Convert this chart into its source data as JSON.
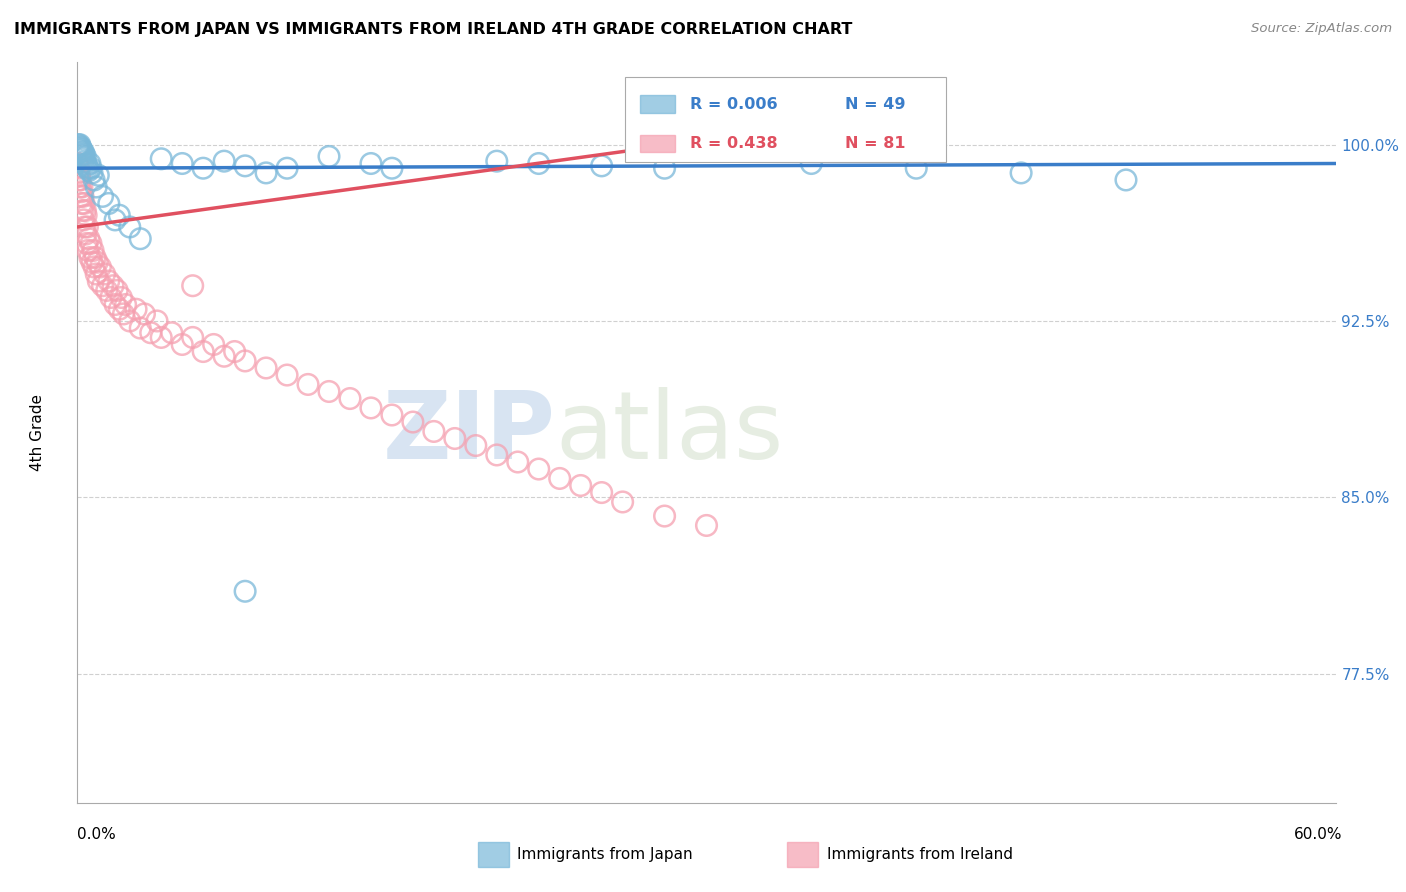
{
  "title": "IMMIGRANTS FROM JAPAN VS IMMIGRANTS FROM IRELAND 4TH GRADE CORRELATION CHART",
  "source": "Source: ZipAtlas.com",
  "ylabel": "4th Grade",
  "yticks": [
    77.5,
    85.0,
    92.5,
    100.0
  ],
  "ytick_labels": [
    "77.5%",
    "85.0%",
    "92.5%",
    "100.0%"
  ],
  "xlim": [
    0.0,
    60.0
  ],
  "ylim": [
    72.0,
    103.5
  ],
  "legend_R_japan": "R = 0.006",
  "legend_N_japan": "N = 49",
  "legend_R_ireland": "R = 0.438",
  "legend_N_ireland": "N = 81",
  "japan_color": "#7ab8d9",
  "ireland_color": "#f5a0b0",
  "japan_line_color": "#3a7dc9",
  "ireland_line_color": "#e05060",
  "watermark_zip": "ZIP",
  "watermark_atlas": "atlas",
  "background_color": "#ffffff",
  "grid_color": "#d0d0d0",
  "japan_scatter_x": [
    0.05,
    0.08,
    0.1,
    0.12,
    0.15,
    0.18,
    0.2,
    0.22,
    0.25,
    0.28,
    0.3,
    0.32,
    0.35,
    0.38,
    0.4,
    0.45,
    0.5,
    0.55,
    0.6,
    0.65,
    0.7,
    0.8,
    0.9,
    1.0,
    1.2,
    1.5,
    1.8,
    2.0,
    2.5,
    3.0,
    4.0,
    5.0,
    6.0,
    7.0,
    8.0,
    9.0,
    10.0,
    12.0,
    14.0,
    15.0,
    20.0,
    22.0,
    25.0,
    28.0,
    35.0,
    40.0,
    45.0,
    50.0,
    8.0
  ],
  "japan_scatter_y": [
    100.0,
    99.9,
    99.8,
    100.0,
    99.9,
    99.7,
    99.8,
    99.6,
    99.5,
    99.7,
    99.4,
    99.6,
    99.3,
    99.5,
    99.2,
    99.1,
    99.0,
    98.9,
    99.2,
    99.0,
    98.8,
    98.5,
    98.2,
    98.7,
    97.8,
    97.5,
    96.8,
    97.0,
    96.5,
    96.0,
    99.4,
    99.2,
    99.0,
    99.3,
    99.1,
    98.8,
    99.0,
    99.5,
    99.2,
    99.0,
    99.3,
    99.2,
    99.1,
    99.0,
    99.2,
    99.0,
    98.8,
    98.5,
    81.0
  ],
  "ireland_scatter_x": [
    0.03,
    0.05,
    0.07,
    0.08,
    0.1,
    0.12,
    0.14,
    0.15,
    0.18,
    0.2,
    0.22,
    0.25,
    0.27,
    0.3,
    0.32,
    0.35,
    0.38,
    0.4,
    0.42,
    0.45,
    0.48,
    0.5,
    0.55,
    0.6,
    0.65,
    0.7,
    0.75,
    0.8,
    0.85,
    0.9,
    0.95,
    1.0,
    1.1,
    1.2,
    1.3,
    1.4,
    1.5,
    1.6,
    1.7,
    1.8,
    1.9,
    2.0,
    2.1,
    2.2,
    2.3,
    2.5,
    2.8,
    3.0,
    3.2,
    3.5,
    3.8,
    4.0,
    4.5,
    5.0,
    5.5,
    6.0,
    6.5,
    7.0,
    7.5,
    8.0,
    9.0,
    10.0,
    11.0,
    12.0,
    13.0,
    14.0,
    15.0,
    16.0,
    17.0,
    18.0,
    19.0,
    20.0,
    21.0,
    22.0,
    23.0,
    24.0,
    25.0,
    26.0,
    28.0,
    30.0,
    5.5
  ],
  "ireland_scatter_y": [
    99.2,
    98.8,
    99.0,
    98.5,
    98.7,
    98.2,
    98.5,
    97.8,
    98.0,
    97.5,
    98.2,
    97.2,
    97.8,
    96.8,
    97.5,
    96.5,
    97.2,
    96.2,
    97.0,
    95.8,
    96.5,
    95.5,
    96.0,
    95.2,
    95.8,
    95.0,
    95.5,
    94.8,
    95.2,
    94.5,
    95.0,
    94.2,
    94.8,
    94.0,
    94.5,
    93.8,
    94.2,
    93.5,
    94.0,
    93.2,
    93.8,
    93.0,
    93.5,
    92.8,
    93.2,
    92.5,
    93.0,
    92.2,
    92.8,
    92.0,
    92.5,
    91.8,
    92.0,
    91.5,
    91.8,
    91.2,
    91.5,
    91.0,
    91.2,
    90.8,
    90.5,
    90.2,
    89.8,
    89.5,
    89.2,
    88.8,
    88.5,
    88.2,
    87.8,
    87.5,
    87.2,
    86.8,
    86.5,
    86.2,
    85.8,
    85.5,
    85.2,
    84.8,
    84.2,
    83.8,
    94.0
  ],
  "japan_trendline_x": [
    0.0,
    60.0
  ],
  "japan_trendline_y": [
    99.0,
    99.2
  ],
  "ireland_trendline_x": [
    0.0,
    30.0
  ],
  "ireland_trendline_y": [
    96.5,
    100.2
  ]
}
